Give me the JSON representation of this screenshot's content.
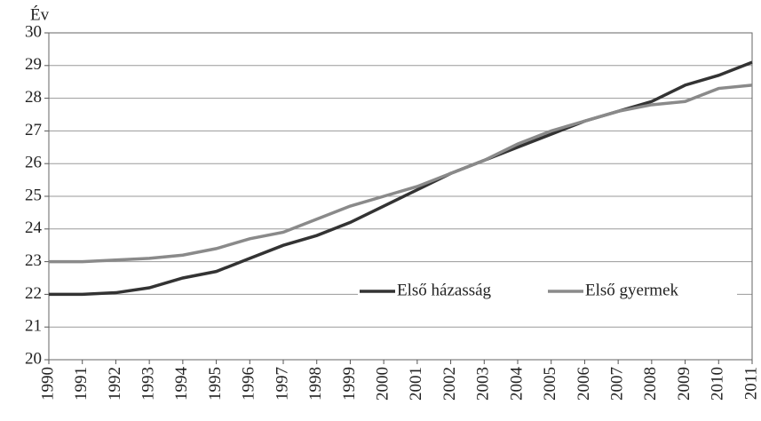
{
  "chart_data": {
    "type": "line",
    "y_label": "Év",
    "categories": [
      "1990",
      "1991",
      "1992",
      "1993",
      "1994",
      "1995",
      "1996",
      "1997",
      "1998",
      "1999",
      "2000",
      "2001",
      "2002",
      "2003",
      "2004",
      "2005",
      "2006",
      "2007",
      "2008",
      "2009",
      "2010",
      "2011"
    ],
    "series": [
      {
        "name": "Első házasság",
        "color": "#333333",
        "values": [
          22.0,
          22.0,
          22.05,
          22.2,
          22.5,
          22.7,
          23.1,
          23.5,
          23.8,
          24.2,
          24.7,
          25.2,
          25.7,
          26.1,
          26.5,
          26.9,
          27.3,
          27.6,
          27.9,
          28.4,
          28.7,
          29.1
        ]
      },
      {
        "name": "Első gyermek",
        "color": "#8a8a8a",
        "values": [
          23.0,
          23.0,
          23.05,
          23.1,
          23.2,
          23.4,
          23.7,
          23.9,
          24.3,
          24.7,
          25.0,
          25.3,
          25.7,
          26.1,
          26.6,
          27.0,
          27.3,
          27.6,
          27.8,
          27.9,
          28.3,
          28.4
        ]
      }
    ],
    "ylim": [
      20,
      30
    ],
    "yticks": [
      20,
      21,
      22,
      23,
      24,
      25,
      26,
      27,
      28,
      29,
      30
    ],
    "grid": true
  }
}
